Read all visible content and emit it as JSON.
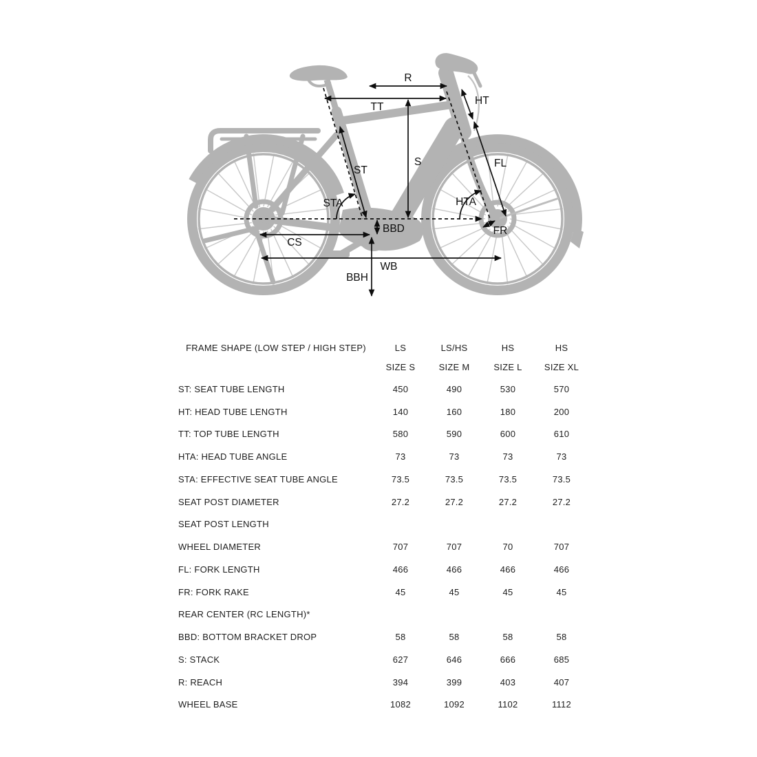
{
  "diagram": {
    "bike_color": "#b3b3b3",
    "spoke_color": "#c6c6c6",
    "annotation_color": "#0d0d0d",
    "labels": {
      "R": "R",
      "TT": "TT",
      "HT": "HT",
      "ST": "ST",
      "S": "S",
      "FL": "FL",
      "STA": "STA",
      "HTA": "HTA",
      "FR": "FR",
      "BBD": "BBD",
      "CS": "CS",
      "WB": "WB",
      "BBH": "BBH"
    }
  },
  "table": {
    "header": {
      "label": "FRAME SHAPE (LOW STEP / HIGH STEP)",
      "top": [
        "LS",
        "LS/HS",
        "HS",
        "HS"
      ],
      "bottom": [
        "SIZE S",
        "SIZE M",
        "SIZE L",
        "SIZE XL"
      ]
    },
    "rows": [
      {
        "label": "ST: SEAT TUBE LENGTH",
        "values": [
          "450",
          "490",
          "530",
          "570"
        ]
      },
      {
        "label": "HT: HEAD TUBE LENGTH",
        "values": [
          "140",
          "160",
          "180",
          "200"
        ]
      },
      {
        "label": "TT: TOP TUBE LENGTH",
        "values": [
          "580",
          "590",
          "600",
          "610"
        ]
      },
      {
        "label": "HTA: HEAD TUBE ANGLE",
        "values": [
          "73",
          "73",
          "73",
          "73"
        ]
      },
      {
        "label": "STA: EFFECTIVE SEAT TUBE ANGLE",
        "values": [
          "73.5",
          "73.5",
          "73.5",
          "73.5"
        ]
      },
      {
        "label": "SEAT POST DIAMETER",
        "values": [
          "27.2",
          "27.2",
          "27.2",
          "27.2"
        ]
      },
      {
        "label": "SEAT POST LENGTH",
        "values": [
          "",
          "",
          "",
          ""
        ]
      },
      {
        "label": "WHEEL DIAMETER",
        "values": [
          "707",
          "707",
          "70",
          "707"
        ]
      },
      {
        "label": "FL: FORK LENGTH",
        "values": [
          "466",
          "466",
          "466",
          "466"
        ]
      },
      {
        "label": "FR: FORK RAKE",
        "values": [
          "45",
          "45",
          "45",
          "45"
        ]
      },
      {
        "label": "REAR CENTER (RC LENGTH)*",
        "values": [
          "",
          "",
          "",
          ""
        ]
      },
      {
        "label": "BBD: BOTTOM BRACKET DROP",
        "values": [
          "58",
          "58",
          "58",
          "58"
        ]
      },
      {
        "label": "S: STACK",
        "values": [
          "627",
          "646",
          "666",
          "685"
        ]
      },
      {
        "label": "R: REACH",
        "values": [
          "394",
          "399",
          "403",
          "407"
        ]
      },
      {
        "label": "WHEEL BASE",
        "values": [
          "1082",
          "1092",
          "1102",
          "1112"
        ]
      }
    ]
  }
}
